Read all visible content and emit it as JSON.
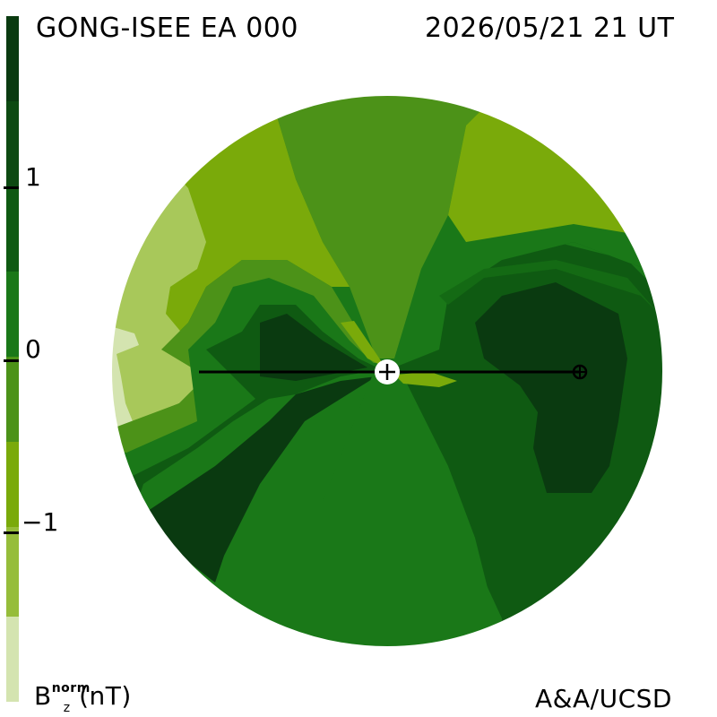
{
  "header": {
    "title_left": "GONG-ISEE EA 000",
    "title_right": "2026/05/21 21 UT"
  },
  "footer": {
    "credit": "A&A/UCSD",
    "units_symbol": "B",
    "units_sup": "norm",
    "units_sub": "z",
    "units_label": "(nT)"
  },
  "colorbar": {
    "ticks": [
      "1",
      "0",
      "−1"
    ],
    "levels": [
      {
        "value": 2.0,
        "color": "#0a3a10"
      },
      {
        "value": 1.75,
        "color": "#0d4a12"
      },
      {
        "value": 1.5,
        "color": "#0f5a12"
      },
      {
        "value": 1.25,
        "color": "#146a14"
      },
      {
        "value": 1.0,
        "color": "#1a7818"
      },
      {
        "value": 0.75,
        "color": "#2e8a1e"
      },
      {
        "value": 0.5,
        "color": "#4c9218"
      },
      {
        "value": 0.25,
        "color": "#5f9a14"
      },
      {
        "value": 0.0,
        "color": "#6aa812"
      },
      {
        "value": -0.25,
        "color": "#7eb010"
      },
      {
        "value": -0.5,
        "color": "#96bd3a"
      },
      {
        "value": -0.75,
        "color": "#a8c85a"
      },
      {
        "value": -1.0,
        "color": "#d4e4b0"
      }
    ]
  },
  "colors": {
    "darkest": "#0a3a10",
    "dark": "#0f5a12",
    "mid_dark": "#1a7818",
    "mid": "#4c9218",
    "mid_light": "#7aaa0a",
    "light": "#a8c85a",
    "lightest": "#d4e4b0"
  }
}
